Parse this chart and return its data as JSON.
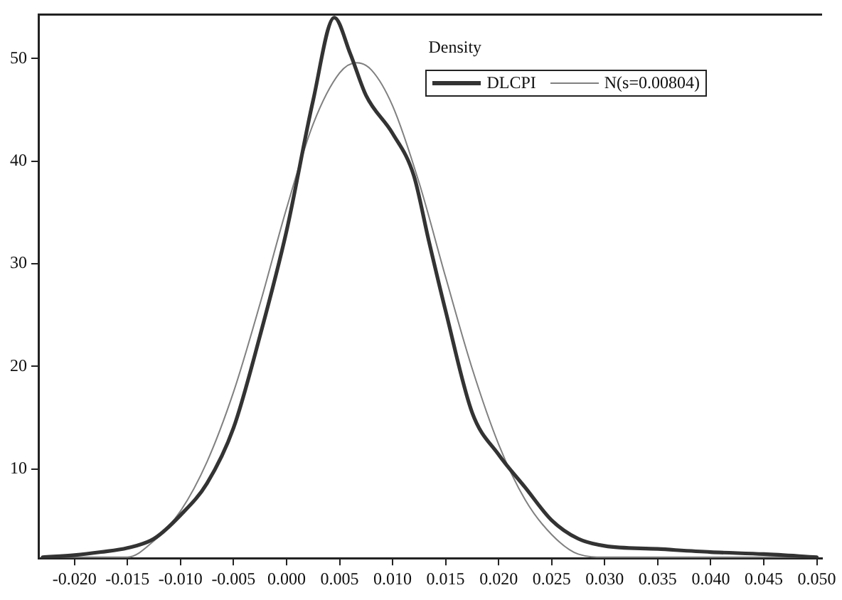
{
  "chart_data": {
    "type": "line",
    "legend_title": "Density",
    "xlim": [
      -0.0234,
      0.0505
    ],
    "ylim": [
      1.3,
      54.3
    ],
    "xticks": [
      {
        "value": -0.02,
        "label": "-0.020"
      },
      {
        "value": -0.015,
        "label": "-0.015"
      },
      {
        "value": -0.01,
        "label": "-0.010"
      },
      {
        "value": -0.005,
        "label": "-0.005"
      },
      {
        "value": 0,
        "label": "0.000"
      },
      {
        "value": 0.005,
        "label": "0.005"
      },
      {
        "value": 0.01,
        "label": "0.010"
      },
      {
        "value": 0.015,
        "label": "0.015"
      },
      {
        "value": 0.02,
        "label": "0.020"
      },
      {
        "value": 0.025,
        "label": "0.025"
      },
      {
        "value": 0.03,
        "label": "0.030"
      },
      {
        "value": 0.035,
        "label": "0.035"
      },
      {
        "value": 0.04,
        "label": "0.040"
      },
      {
        "value": 0.045,
        "label": "0.045"
      },
      {
        "value": 0.05,
        "label": "0.050"
      }
    ],
    "yticks": [
      10,
      20,
      30,
      40,
      50
    ],
    "grid": false,
    "legend": "top right",
    "series": [
      {
        "name": "DLCPI",
        "color": "#333333",
        "x": [
          -0.023,
          -0.02,
          -0.0175,
          -0.015,
          -0.0125,
          -0.01,
          -0.0075,
          -0.005,
          -0.0025,
          0,
          0.0025,
          0.0045,
          0.006,
          0.0075,
          0.01,
          0.012,
          0.0134,
          0.015,
          0.0175,
          0.02,
          0.0225,
          0.025,
          0.0275,
          0.03,
          0.035,
          0.04,
          0.045,
          0.05
        ],
        "values": [
          1.4,
          1.6,
          1.9,
          2.3,
          3.2,
          5.5,
          8.6,
          14,
          23,
          33.2,
          45.9,
          54,
          50.5,
          46.4,
          42.7,
          38.6,
          32.3,
          25.4,
          15.5,
          11.4,
          8.2,
          5.0,
          3.2,
          2.5,
          2.2,
          1.9,
          1.7,
          1.4
        ]
      },
      {
        "name": "N(s=0.00804)",
        "color": "#808080",
        "x": [
          -0.023,
          -0.015,
          -0.0125,
          -0.01,
          -0.0075,
          -0.005,
          -0.0025,
          0,
          0.0025,
          0.005,
          0.0066,
          0.008,
          0.01,
          0.0125,
          0.015,
          0.0175,
          0.02,
          0.0225,
          0.025,
          0.0275,
          0.03,
          0.05
        ],
        "values": [
          1.4,
          1.4,
          3.0,
          5.9,
          10.7,
          17.5,
          26.1,
          35.4,
          43.6,
          48.6,
          49.6,
          48.9,
          45.4,
          37.9,
          28.7,
          19.8,
          12.4,
          7.0,
          3.6,
          1.7,
          1.4,
          1.4
        ]
      }
    ]
  }
}
